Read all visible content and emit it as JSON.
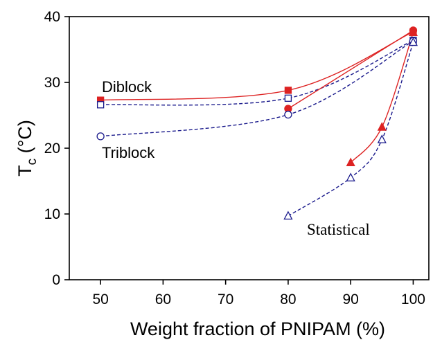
{
  "chart_data": {
    "type": "line",
    "xlabel": "Weight fraction of PNIPAM (%)",
    "ylabel_main": "T",
    "ylabel_sub": "c",
    "ylabel_unit": " (°C)",
    "x_ticks": [
      50,
      60,
      70,
      80,
      90,
      100
    ],
    "y_ticks": [
      0,
      10,
      20,
      30,
      40
    ],
    "xlim": [
      45,
      102.5
    ],
    "ylim": [
      0,
      40
    ],
    "grid": false,
    "series": [
      {
        "label": "Diblock",
        "color": "#dd2222",
        "marker": "square-filled",
        "line": "solid",
        "x": [
          50,
          80,
          100
        ],
        "y": [
          27.3,
          28.8,
          37.7
        ]
      },
      {
        "color": "#1a1a8c",
        "marker": "square-open",
        "line": "dashed",
        "x": [
          50,
          80,
          100
        ],
        "y": [
          26.6,
          27.6,
          36.4
        ]
      },
      {
        "color": "#dd2222",
        "marker": "circle-filled",
        "line": "solid",
        "x": [
          80,
          100
        ],
        "y": [
          26.0,
          37.9
        ]
      },
      {
        "label": "Triblock",
        "color": "#1a1a8c",
        "marker": "circle-open",
        "line": "dashed",
        "x": [
          50,
          80,
          100
        ],
        "y": [
          21.8,
          25.1,
          36.3
        ]
      },
      {
        "color": "#dd2222",
        "marker": "triangle-filled",
        "line": "solid",
        "x": [
          90,
          95,
          100
        ],
        "y": [
          17.8,
          23.2,
          37.6
        ]
      },
      {
        "label": "Statistical",
        "color": "#1a1a8c",
        "marker": "triangle-open",
        "line": "dashed",
        "x": [
          80,
          90,
          95,
          100
        ],
        "y": [
          9.7,
          15.5,
          21.3,
          36.1
        ]
      }
    ]
  }
}
